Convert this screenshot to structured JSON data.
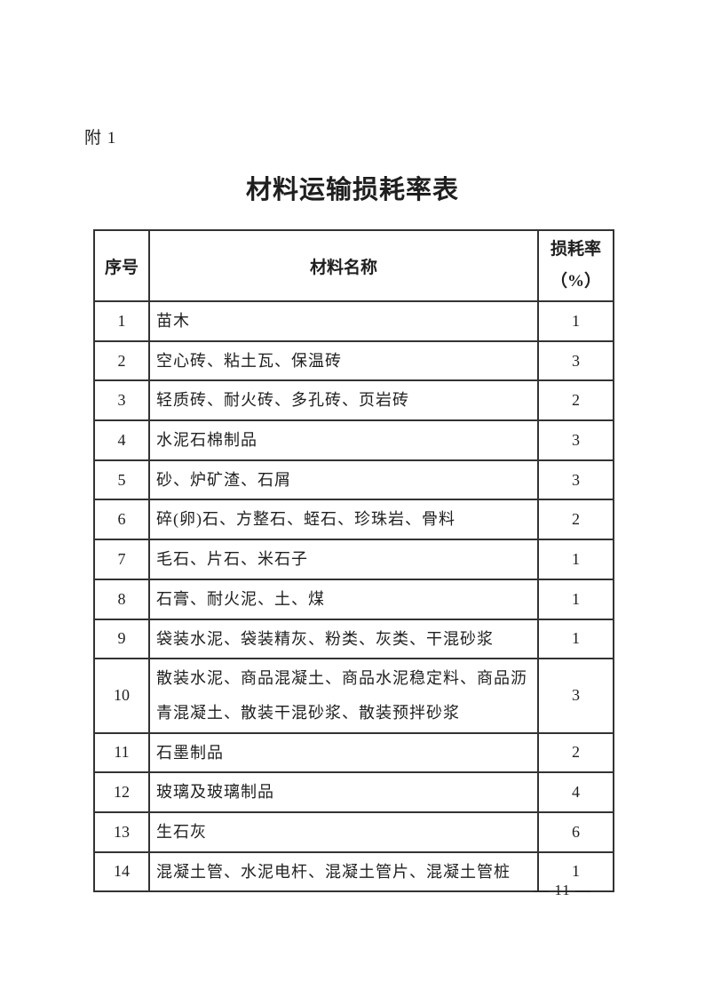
{
  "page": {
    "attachment_label": "附 1",
    "title": "材料运输损耗率表",
    "page_number": "— 11 —"
  },
  "table": {
    "headers": {
      "index": "序号",
      "material": "材料名称",
      "loss_rate_line1": "损耗率",
      "loss_rate_line2": "（%）"
    },
    "rows": [
      {
        "no": "1",
        "material": "苗木",
        "rate": "1"
      },
      {
        "no": "2",
        "material": "空心砖、粘土瓦、保温砖",
        "rate": "3"
      },
      {
        "no": "3",
        "material": "轻质砖、耐火砖、多孔砖、页岩砖",
        "rate": "2"
      },
      {
        "no": "4",
        "material": "水泥石棉制品",
        "rate": "3"
      },
      {
        "no": "5",
        "material": "砂、炉矿渣、石屑",
        "rate": "3"
      },
      {
        "no": "6",
        "material": "碎(卵)石、方整石、蛭石、珍珠岩、骨料",
        "rate": "2"
      },
      {
        "no": "7",
        "material": "毛石、片石、米石子",
        "rate": "1"
      },
      {
        "no": "8",
        "material": "石膏、耐火泥、土、煤",
        "rate": "1"
      },
      {
        "no": "9",
        "material": "袋装水泥、袋装精灰、粉类、灰类、干混砂浆",
        "rate": "1"
      },
      {
        "no": "10",
        "material": "散装水泥、商品混凝土、商品水泥稳定料、商品沥青混凝土、散装干混砂浆、散装预拌砂浆",
        "rate": "3"
      },
      {
        "no": "11",
        "material": "石墨制品",
        "rate": "2"
      },
      {
        "no": "12",
        "material": "玻璃及玻璃制品",
        "rate": "4"
      },
      {
        "no": "13",
        "material": "生石灰",
        "rate": "6"
      },
      {
        "no": "14",
        "material": "混凝土管、水泥电杆、混凝土管片、混凝土管桩",
        "rate": "1"
      }
    ]
  }
}
